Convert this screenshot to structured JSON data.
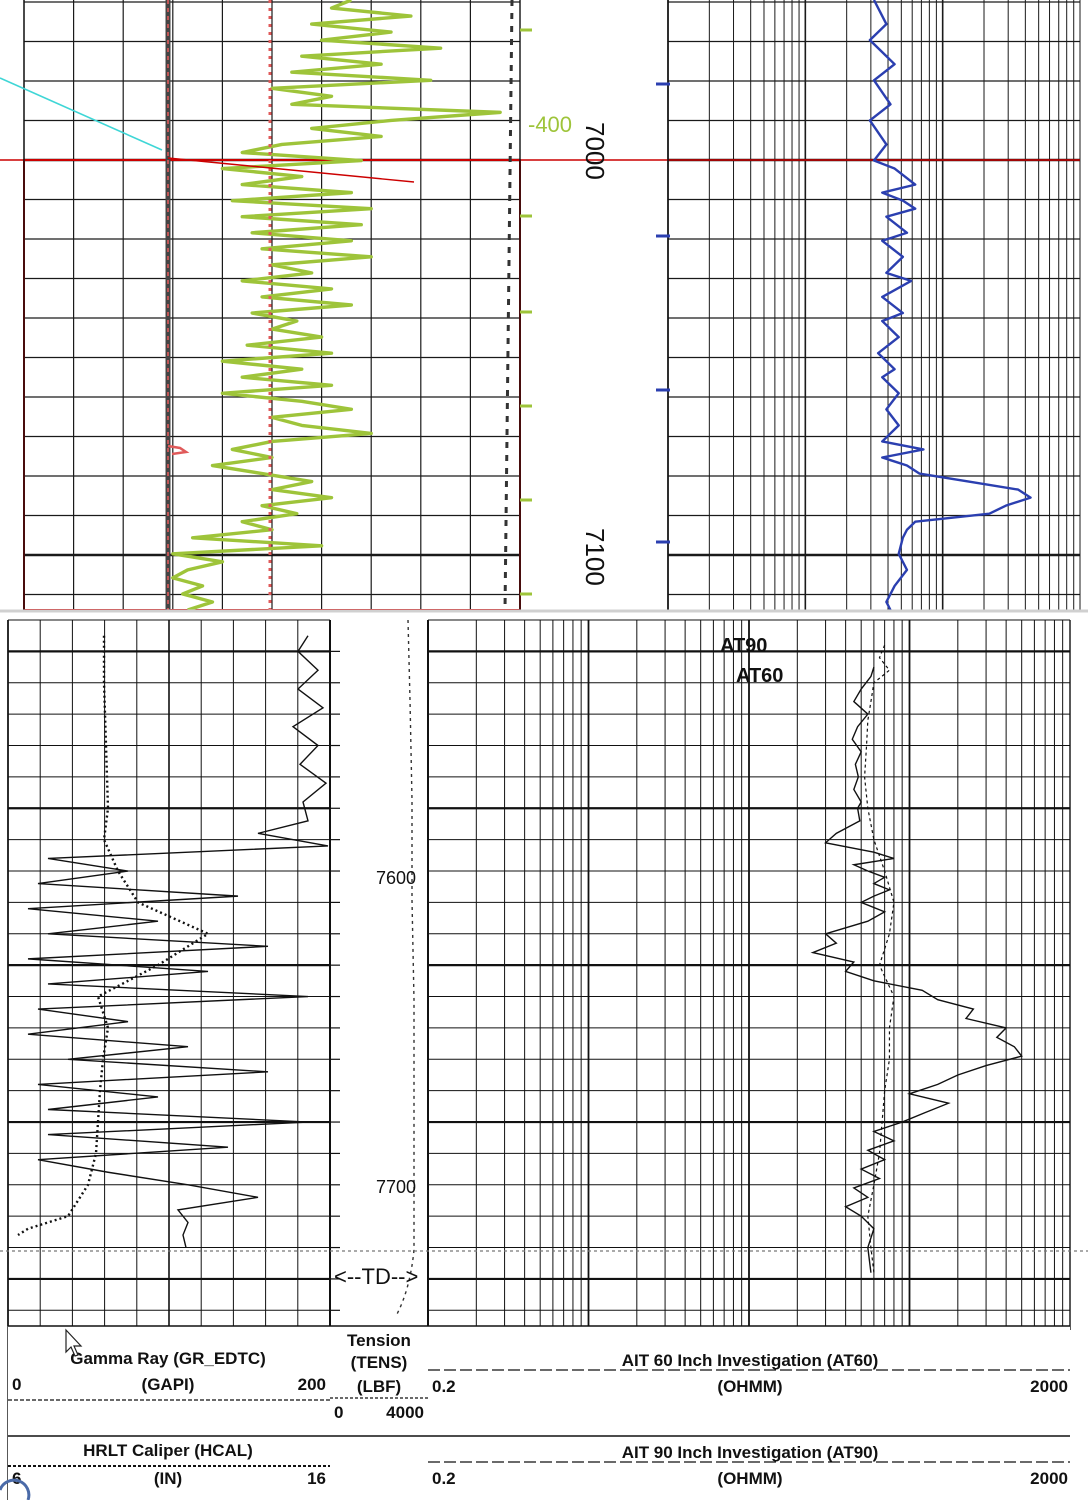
{
  "viewer": {
    "upper_panel": {
      "depth_labels": [
        "7000",
        "7100"
      ],
      "annotation": "-400",
      "colors": {
        "grid": "#1a1a1a",
        "pick_line": "#cc0000",
        "gamma_ray": "#9ec43a",
        "caliper": "#e05a5a",
        "resistivity": "#2b3fb0",
        "correlation": "#3fd6d6",
        "annotation": "#9ec43a"
      }
    },
    "lower_panel": {
      "depth_labels": [
        "7600",
        "7700"
      ],
      "td_marker": "<--TD-->",
      "curve_labels": [
        "AT90",
        "AT60"
      ],
      "header": {
        "row1": {
          "track1": {
            "title": "Gamma Ray (GR_EDTC)",
            "unit": "(GAPI)",
            "min": "0",
            "max": "200"
          },
          "track2": {
            "title": "Tension",
            "sub": "(TENS)",
            "unit": "(LBF)",
            "min": "0",
            "max": "4000"
          },
          "track3": {
            "title": "AIT 60 Inch Investigation (AT60)",
            "unit": "(OHMM)",
            "min": "0.2",
            "max": "2000"
          }
        },
        "row2": {
          "track1": {
            "title": "HRLT Caliper (HCAL)",
            "unit": "(IN)",
            "min": "6",
            "max": "16"
          },
          "track3": {
            "title": "AIT 90 Inch Investigation (AT90)",
            "unit": "(OHMM)",
            "min": "0.2",
            "max": "2000"
          }
        }
      }
    }
  },
  "chart_data": [
    {
      "type": "line",
      "title": "",
      "depth_axis": {
        "ticks": [
          7000,
          7100
        ],
        "range": [
          6958,
          7110
        ]
      },
      "series": [
        {
          "values": [
            [
              6958,
              0.66
            ],
            [
              6960,
              0.62
            ],
            [
              6962,
              0.78
            ],
            [
              6964,
              0.58
            ],
            [
              6966,
              0.74
            ],
            [
              6968,
              0.6
            ],
            [
              6970,
              0.84
            ],
            [
              6972,
              0.56
            ],
            [
              6974,
              0.72
            ],
            [
              6976,
              0.54
            ],
            [
              6978,
              0.82
            ],
            [
              6980,
              0.5
            ],
            [
              6982,
              0.62
            ],
            [
              6984,
              0.54
            ],
            [
              6986,
              0.96
            ],
            [
              6988,
              0.74
            ],
            [
              6990,
              0.58
            ],
            [
              6992,
              0.72
            ],
            [
              6994,
              0.52
            ],
            [
              6996,
              0.44
            ],
            [
              6998,
              0.68
            ],
            [
              7000,
              0.4
            ],
            [
              7002,
              0.56
            ],
            [
              7004,
              0.44
            ],
            [
              7006,
              0.66
            ],
            [
              7008,
              0.42
            ],
            [
              7010,
              0.7
            ],
            [
              7012,
              0.44
            ],
            [
              7014,
              0.68
            ],
            [
              7016,
              0.46
            ],
            [
              7018,
              0.66
            ],
            [
              7020,
              0.48
            ],
            [
              7022,
              0.7
            ],
            [
              7024,
              0.5
            ],
            [
              7026,
              0.58
            ],
            [
              7028,
              0.44
            ],
            [
              7030,
              0.62
            ],
            [
              7032,
              0.48
            ],
            [
              7034,
              0.66
            ],
            [
              7036,
              0.46
            ],
            [
              7038,
              0.55
            ],
            [
              7040,
              0.5
            ],
            [
              7042,
              0.6
            ],
            [
              7044,
              0.45
            ],
            [
              7046,
              0.62
            ],
            [
              7048,
              0.4
            ],
            [
              7050,
              0.56
            ],
            [
              7052,
              0.44
            ],
            [
              7054,
              0.62
            ],
            [
              7056,
              0.4
            ],
            [
              7058,
              0.56
            ],
            [
              7060,
              0.66
            ],
            [
              7062,
              0.5
            ],
            [
              7064,
              0.56
            ],
            [
              7066,
              0.7
            ],
            [
              7068,
              0.5
            ],
            [
              7070,
              0.42
            ],
            [
              7072,
              0.5
            ],
            [
              7074,
              0.38
            ],
            [
              7076,
              0.48
            ],
            [
              7078,
              0.58
            ],
            [
              7080,
              0.5
            ],
            [
              7082,
              0.62
            ],
            [
              7084,
              0.48
            ],
            [
              7086,
              0.55
            ],
            [
              7088,
              0.44
            ],
            [
              7090,
              0.5
            ],
            [
              7092,
              0.34
            ],
            [
              7094,
              0.6
            ],
            [
              7096,
              0.3
            ],
            [
              7098,
              0.4
            ],
            [
              7100,
              0.33
            ],
            [
              7102,
              0.3
            ],
            [
              7104,
              0.36
            ],
            [
              7106,
              0.32
            ],
            [
              7108,
              0.38
            ],
            [
              7110,
              0.33
            ]
          ]
        },
        {
          "values": [
            [
              6958,
              0.5
            ],
            [
              6964,
              0.53
            ],
            [
              6968,
              0.49
            ],
            [
              6974,
              0.55
            ],
            [
              6978,
              0.5
            ],
            [
              6984,
              0.54
            ],
            [
              6988,
              0.49
            ],
            [
              6994,
              0.53
            ],
            [
              6998,
              0.5
            ],
            [
              7000,
              0.55
            ],
            [
              7004,
              0.6
            ],
            [
              7006,
              0.52
            ],
            [
              7008,
              0.57
            ],
            [
              7010,
              0.6
            ],
            [
              7012,
              0.53
            ],
            [
              7016,
              0.58
            ],
            [
              7018,
              0.52
            ],
            [
              7022,
              0.57
            ],
            [
              7026,
              0.53
            ],
            [
              7028,
              0.59
            ],
            [
              7032,
              0.52
            ],
            [
              7036,
              0.57
            ],
            [
              7038,
              0.52
            ],
            [
              7042,
              0.56
            ],
            [
              7046,
              0.51
            ],
            [
              7050,
              0.55
            ],
            [
              7052,
              0.52
            ],
            [
              7056,
              0.56
            ],
            [
              7060,
              0.53
            ],
            [
              7064,
              0.56
            ],
            [
              7068,
              0.52
            ],
            [
              7070,
              0.62
            ],
            [
              7072,
              0.52
            ],
            [
              7074,
              0.58
            ],
            [
              7076,
              0.61
            ],
            [
              7078,
              0.73
            ],
            [
              7080,
              0.85
            ],
            [
              7082,
              0.88
            ],
            [
              7084,
              0.82
            ],
            [
              7086,
              0.78
            ],
            [
              7088,
              0.6
            ],
            [
              7090,
              0.58
            ],
            [
              7092,
              0.57
            ],
            [
              7096,
              0.56
            ],
            [
              7100,
              0.58
            ],
            [
              7104,
              0.55
            ],
            [
              7108,
              0.53
            ],
            [
              7110,
              0.54
            ]
          ]
        }
      ]
    },
    {
      "type": "line",
      "title": "",
      "depth_axis": {
        "ticks": [
          7600,
          7700
        ],
        "range": [
          7540,
          7765
        ],
        "td": 7730
      },
      "gamma_ray_scale": [
        0,
        200
      ],
      "caliper_scale": [
        6,
        16
      ],
      "tension_scale": [
        0,
        4000
      ],
      "resistivity_scale": [
        0.2,
        2000
      ],
      "resistivity_scale_type": "log",
      "series": [
        {
          "name": "AT60",
          "values": [
            [
              7555,
              120
            ],
            [
              7558,
              115
            ],
            [
              7562,
              100
            ],
            [
              7566,
              90
            ],
            [
              7570,
              110
            ],
            [
              7574,
              95
            ],
            [
              7578,
              88
            ],
            [
              7582,
              100
            ],
            [
              7586,
              92
            ],
            [
              7590,
              96
            ],
            [
              7594,
              90
            ],
            [
              7598,
              100
            ],
            [
              7600,
              95
            ],
            [
              7604,
              98
            ],
            [
              7608,
              70
            ],
            [
              7611,
              60
            ],
            [
              7614,
              120
            ],
            [
              7616,
              160
            ],
            [
              7618,
              90
            ],
            [
              7620,
              110
            ],
            [
              7622,
              140
            ],
            [
              7624,
              120
            ],
            [
              7626,
              150
            ],
            [
              7628,
              120
            ],
            [
              7630,
              100
            ],
            [
              7633,
              140
            ],
            [
              7636,
              110
            ],
            [
              7640,
              60
            ],
            [
              7643,
              70
            ],
            [
              7646,
              50
            ],
            [
              7649,
              90
            ],
            [
              7652,
              80
            ],
            [
              7655,
              120
            ],
            [
              7658,
              240
            ],
            [
              7661,
              300
            ],
            [
              7664,
              500
            ],
            [
              7667,
              450
            ],
            [
              7670,
              800
            ],
            [
              7673,
              700
            ],
            [
              7676,
              900
            ],
            [
              7679,
              1000
            ],
            [
              7682,
              600
            ],
            [
              7685,
              400
            ],
            [
              7688,
              300
            ],
            [
              7691,
              200
            ],
            [
              7694,
              350
            ],
            [
              7697,
              250
            ],
            [
              7700,
              180
            ],
            [
              7703,
              120
            ],
            [
              7706,
              160
            ],
            [
              7709,
              110
            ],
            [
              7712,
              140
            ],
            [
              7715,
              100
            ],
            [
              7718,
              130
            ],
            [
              7721,
              90
            ],
            [
              7724,
              110
            ],
            [
              7727,
              80
            ],
            [
              7730,
              100
            ],
            [
              7734,
              120
            ],
            [
              7740,
              110
            ],
            [
              7748,
              115
            ]
          ]
        },
        {
          "name": "AT90",
          "values": [
            [
              7548,
              140
            ],
            [
              7552,
              130
            ],
            [
              7556,
              150
            ],
            [
              7560,
              120
            ],
            [
              7566,
              115
            ],
            [
              7572,
              110
            ],
            [
              7580,
              108
            ],
            [
              7590,
              105
            ],
            [
              7600,
              110
            ],
            [
              7610,
              120
            ],
            [
              7620,
              140
            ],
            [
              7630,
              160
            ],
            [
              7640,
              150
            ],
            [
              7650,
              130
            ],
            [
              7660,
              160
            ],
            [
              7670,
              150
            ],
            [
              7680,
              150
            ],
            [
              7690,
              140
            ],
            [
              7700,
              135
            ],
            [
              7710,
              130
            ],
            [
              7720,
              120
            ],
            [
              7730,
              110
            ],
            [
              7740,
              115
            ],
            [
              7748,
              120
            ]
          ]
        }
      ]
    }
  ]
}
